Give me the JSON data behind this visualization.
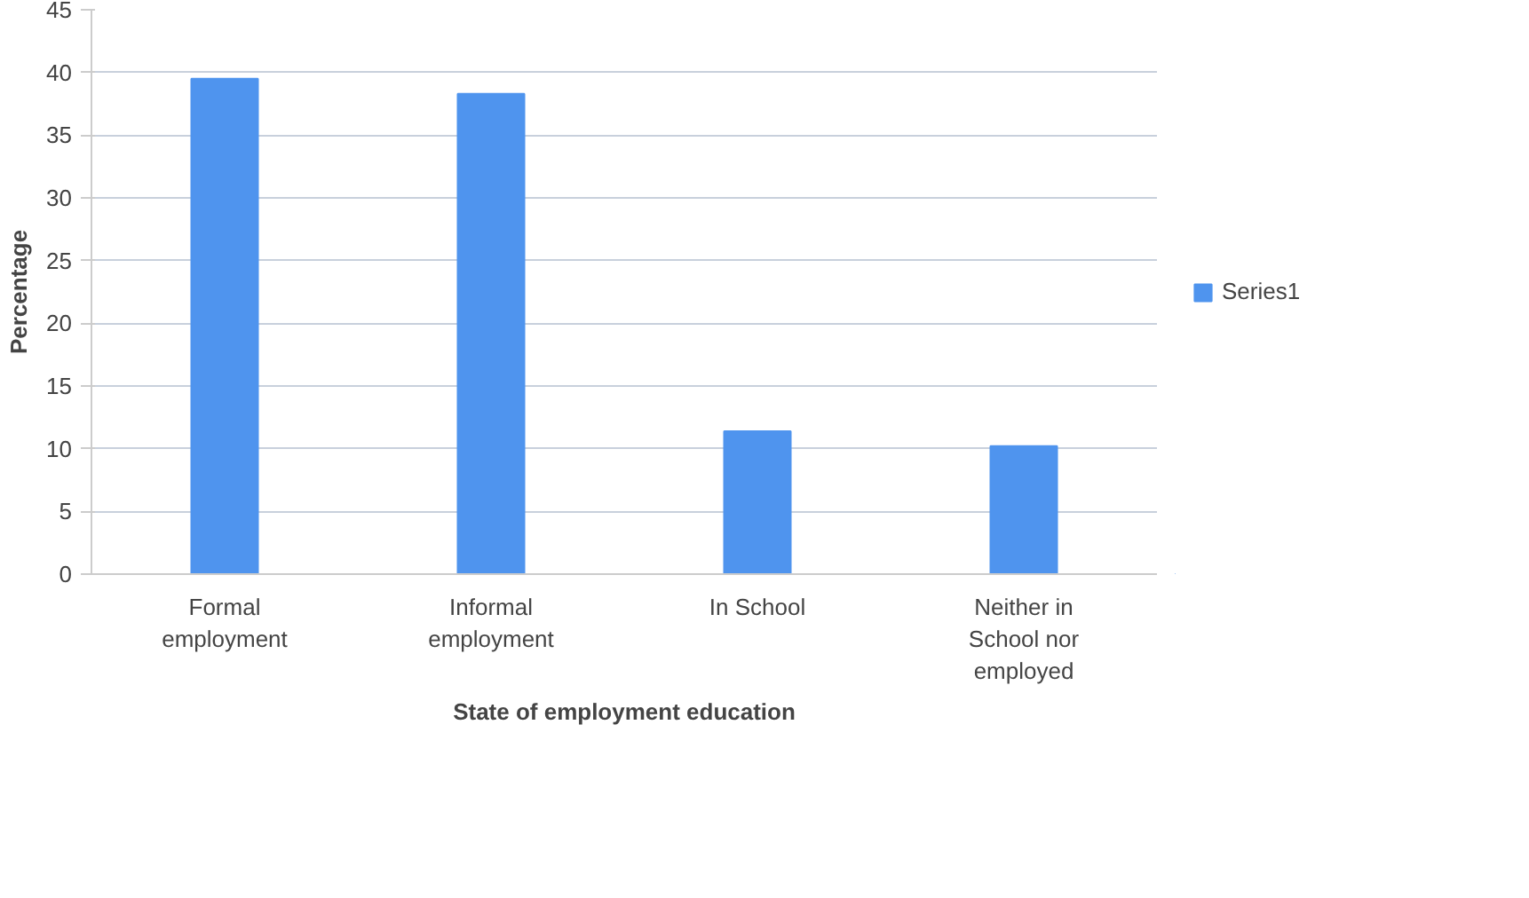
{
  "chart_data": {
    "type": "bar",
    "xlabel": "State of employment education",
    "ylabel": "Percentage",
    "categories": [
      "Formal employment",
      "Informal employment",
      "In School",
      "Neither in School nor employed"
    ],
    "series": [
      {
        "name": "Series1",
        "color": "#4f94ee",
        "values": [
          39.5,
          38.3,
          11.4,
          10.2
        ]
      }
    ],
    "ylim": [
      0,
      45
    ],
    "yticks": [
      0,
      5,
      10,
      15,
      20,
      25,
      30,
      35,
      40,
      45
    ],
    "grid": "y",
    "legend": "right"
  }
}
